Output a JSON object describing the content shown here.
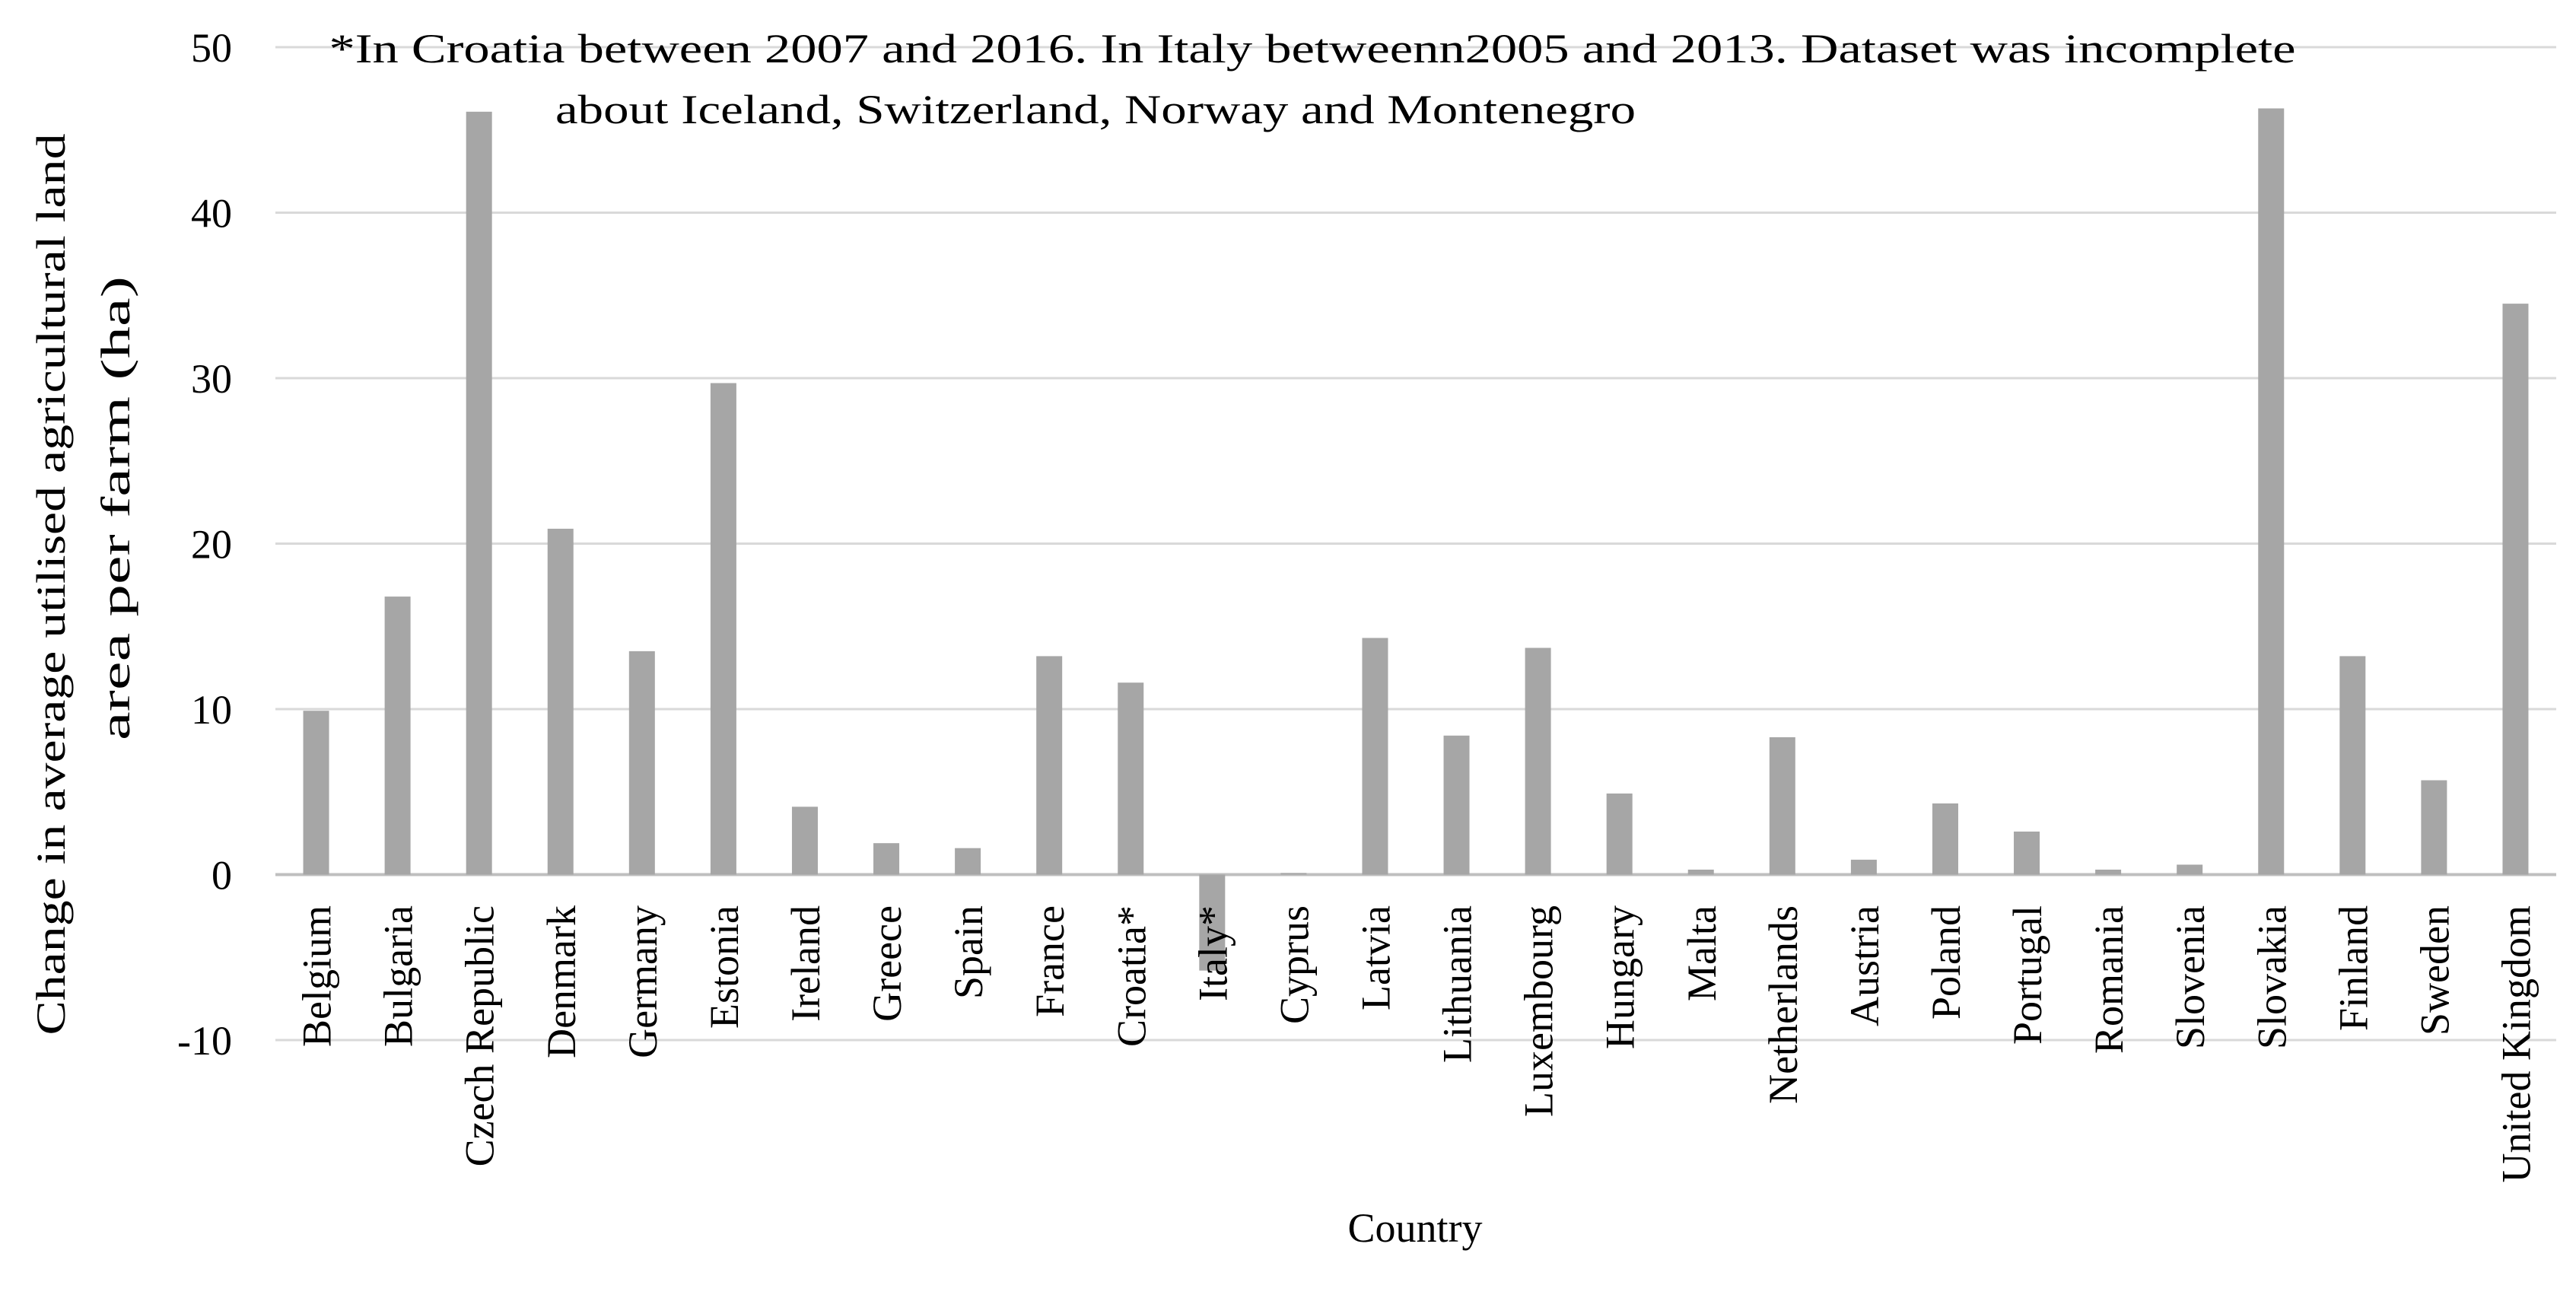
{
  "chart_data": {
    "type": "bar",
    "title": "",
    "annotation": [
      "*In Croatia between 2007 and 2016. In Italy betweenn2005 and 2013. Dataset was incomplete",
      "about Iceland, Switzerland, Norway and Montenegro"
    ],
    "xlabel": "Country",
    "ylabel": [
      "Change  in average utilised agricultural land",
      "area per farm (ha)"
    ],
    "ylim": [
      -10,
      50
    ],
    "yticks": [
      -10,
      0,
      10,
      20,
      30,
      40,
      50
    ],
    "grid": true,
    "legend": "none",
    "categories": [
      "Belgium",
      "Bulgaria",
      "Czech Republic",
      "Denmark",
      "Germany",
      "Estonia",
      "Ireland",
      "Greece",
      "Spain",
      "France",
      "Croatia*",
      "Italy*",
      "Cyprus",
      "Latvia",
      "Lithuania",
      "Luxembourg",
      "Hungary",
      "Malta",
      "Netherlands",
      "Austria",
      "Poland",
      "Portugal",
      "Romania",
      "Slovenia",
      "Slovakia",
      "Finland",
      "Sweden",
      "United Kingdom"
    ],
    "values": [
      9.9,
      16.8,
      46.1,
      20.9,
      13.5,
      29.7,
      4.1,
      1.9,
      1.6,
      13.2,
      11.6,
      -5.8,
      0.1,
      14.3,
      8.4,
      13.7,
      4.9,
      0.3,
      8.3,
      0.9,
      4.3,
      2.6,
      0.3,
      0.6,
      46.3,
      13.2,
      5.7,
      34.5
    ],
    "colors": {
      "bar": "#a6a6a6",
      "grid": "#d9d9d9",
      "axis": "#bfbfbf",
      "text": "#000000"
    }
  }
}
